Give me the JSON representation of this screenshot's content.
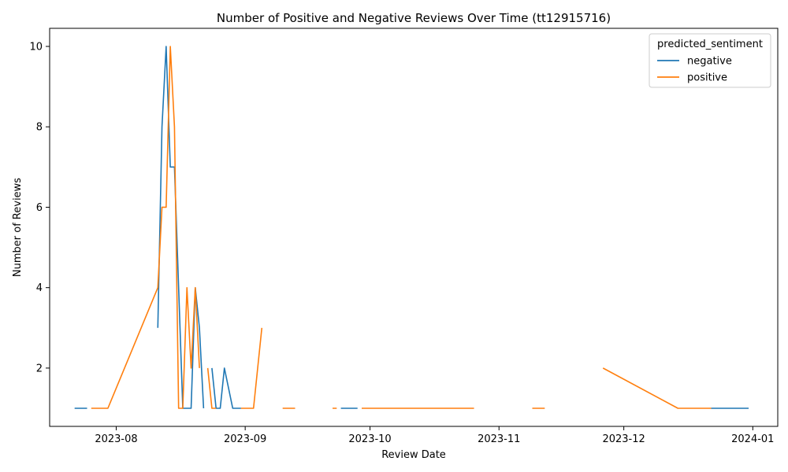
{
  "chart_data": {
    "type": "line",
    "title": "Number of Positive and Negative Reviews Over Time (tt12915716)",
    "xlabel": "Review Date",
    "ylabel": "Number of Reviews",
    "xlim": [
      "2023-07-16",
      "2024-01-07"
    ],
    "ylim": [
      0.55,
      10.45
    ],
    "x_ticks": [
      {
        "date": "2023-08-01",
        "label": "2023-08"
      },
      {
        "date": "2023-09-01",
        "label": "2023-09"
      },
      {
        "date": "2023-10-01",
        "label": "2023-10"
      },
      {
        "date": "2023-11-01",
        "label": "2023-11"
      },
      {
        "date": "2023-12-01",
        "label": "2023-12"
      },
      {
        "date": "2024-01-01",
        "label": "2024-01"
      }
    ],
    "y_ticks": [
      2,
      4,
      6,
      8,
      10
    ],
    "grid": false,
    "legend": {
      "title": "predicted_sentiment",
      "position": "top-right"
    },
    "series": [
      {
        "name": "negative",
        "color": "#1f77b4",
        "points": [
          [
            "2023-07-22",
            1
          ],
          [
            "2023-07-23",
            1
          ],
          [
            "2023-07-24",
            1
          ],
          [
            "2023-07-25",
            1
          ],
          null,
          [
            "2023-08-11",
            3
          ],
          [
            "2023-08-12",
            8
          ],
          [
            "2023-08-13",
            10
          ],
          [
            "2023-08-14",
            7
          ],
          [
            "2023-08-15",
            7
          ],
          [
            "2023-08-16",
            4
          ],
          [
            "2023-08-17",
            1
          ],
          [
            "2023-08-18",
            1
          ],
          [
            "2023-08-19",
            1
          ],
          [
            "2023-08-20",
            4
          ],
          [
            "2023-08-21",
            3
          ],
          [
            "2023-08-22",
            1
          ],
          null,
          [
            "2023-08-24",
            2
          ],
          [
            "2023-08-25",
            1
          ],
          [
            "2023-08-26",
            1
          ],
          [
            "2023-08-27",
            2
          ],
          [
            "2023-08-28",
            1.5
          ],
          [
            "2023-08-29",
            1
          ],
          [
            "2023-08-30",
            1
          ],
          [
            "2023-08-31",
            1
          ],
          null,
          [
            "2023-09-24",
            1
          ],
          [
            "2023-09-28",
            1
          ],
          null,
          [
            "2023-12-22",
            1
          ],
          [
            "2023-12-31",
            1
          ]
        ]
      },
      {
        "name": "positive",
        "color": "#ff7f0e",
        "points": [
          [
            "2023-07-26",
            1
          ],
          [
            "2023-07-30",
            1
          ],
          [
            "2023-08-11",
            4
          ],
          [
            "2023-08-12",
            6
          ],
          [
            "2023-08-13",
            6
          ],
          [
            "2023-08-14",
            10
          ],
          [
            "2023-08-15",
            8
          ],
          [
            "2023-08-16",
            1
          ],
          [
            "2023-08-17",
            1
          ],
          [
            "2023-08-18",
            4
          ],
          [
            "2023-08-19",
            2
          ],
          [
            "2023-08-20",
            4
          ],
          [
            "2023-08-21",
            2
          ],
          null,
          [
            "2023-08-23",
            2
          ],
          [
            "2023-08-24",
            1
          ],
          [
            "2023-08-25",
            1
          ],
          null,
          [
            "2023-08-31",
            1
          ],
          [
            "2023-09-03",
            1
          ],
          [
            "2023-09-05",
            3
          ],
          null,
          [
            "2023-09-10",
            1
          ],
          [
            "2023-09-13",
            1
          ],
          null,
          [
            "2023-09-22",
            1
          ],
          [
            "2023-09-23",
            1
          ],
          null,
          [
            "2023-09-29",
            1
          ],
          [
            "2023-10-26",
            1
          ],
          null,
          [
            "2023-11-09",
            1
          ],
          [
            "2023-11-12",
            1
          ],
          null,
          [
            "2023-11-26",
            2
          ],
          [
            "2023-12-14",
            1
          ],
          [
            "2023-12-22",
            1
          ]
        ]
      }
    ]
  }
}
